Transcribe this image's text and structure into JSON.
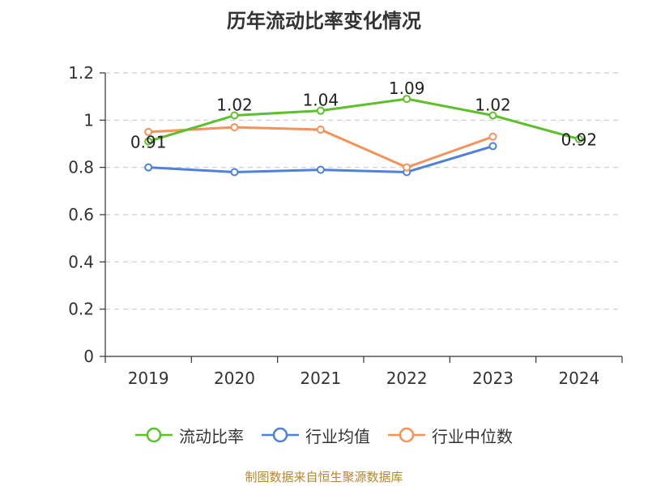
{
  "chart_data": {
    "type": "line",
    "title": "历年流动比率变化情况",
    "categories": [
      "2019",
      "2020",
      "2021",
      "2022",
      "2023",
      "2024"
    ],
    "ylim": [
      0,
      1.2
    ],
    "yticks": [
      "0",
      "0.2",
      "0.4",
      "0.6",
      "0.8",
      "1",
      "1.2"
    ],
    "grid": true,
    "legend_position": "bottom",
    "series": [
      {
        "name": "流动比率",
        "color": "#5cc02b",
        "values": [
          0.91,
          1.02,
          1.04,
          1.09,
          1.02,
          0.92
        ],
        "labels": [
          "0.91",
          "1.02",
          "1.04",
          "1.09",
          "1.02",
          "0.92"
        ]
      },
      {
        "name": "行业均值",
        "color": "#4f81d8",
        "values": [
          0.8,
          0.78,
          0.79,
          0.78,
          0.89,
          null
        ]
      },
      {
        "name": "行业中位数",
        "color": "#f59259",
        "values": [
          0.95,
          0.97,
          0.96,
          0.8,
          0.93,
          null
        ]
      }
    ]
  },
  "footer": "制图数据来自恒生聚源数据库"
}
